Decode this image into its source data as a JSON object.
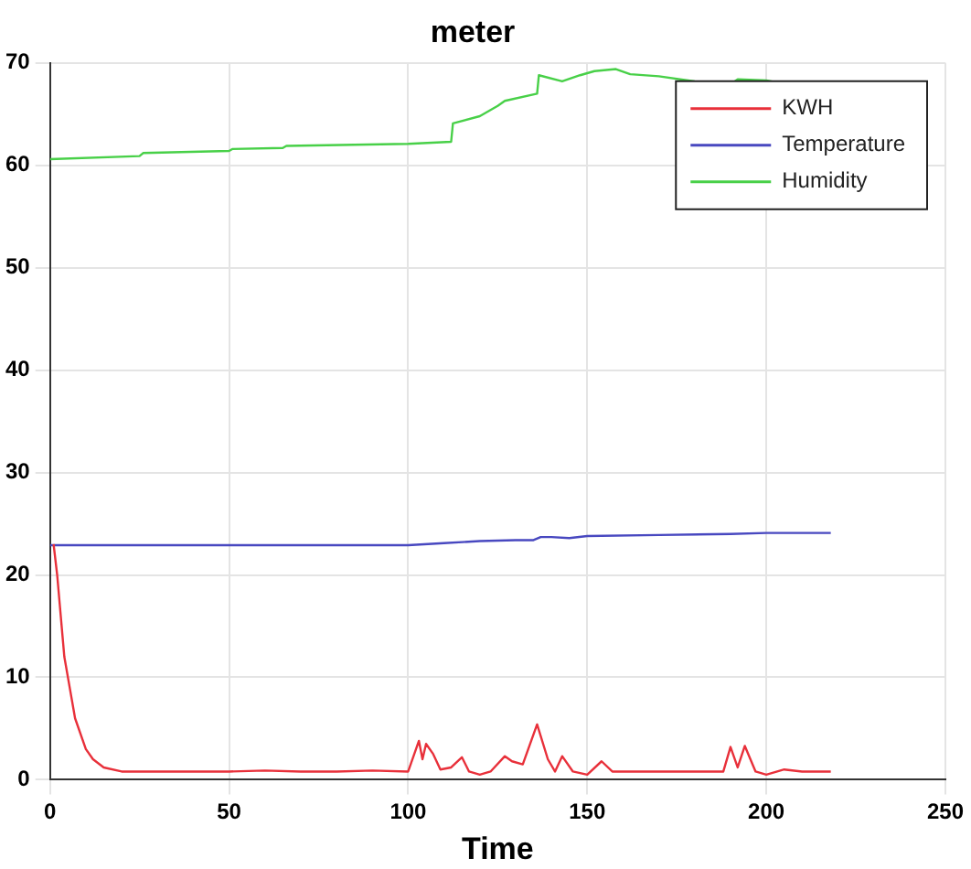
{
  "chart_data": {
    "type": "line",
    "title": "meter",
    "xlabel": "Time",
    "xlim": [
      0,
      250
    ],
    "xticks": [
      0,
      50,
      100,
      150,
      200,
      250
    ],
    "ylim": [
      0,
      70
    ],
    "yticks": [
      0,
      10,
      20,
      30,
      40,
      50,
      60,
      70
    ],
    "grid": true,
    "legend": "top right",
    "marker": "none",
    "line_style": "solid",
    "series": [
      {
        "name": "KWH",
        "color": "#e8303a",
        "x": [
          1,
          2,
          4,
          7,
          10,
          12,
          15,
          20,
          30,
          40,
          50,
          60,
          70,
          80,
          90,
          100,
          103,
          104,
          105,
          107,
          109,
          112,
          115,
          117,
          120,
          123,
          127,
          129,
          132,
          136,
          139,
          141,
          143,
          146,
          150,
          154,
          157,
          170,
          188,
          190,
          192,
          194,
          197,
          200,
          205,
          210,
          218
        ],
        "values": [
          23,
          20,
          12,
          6,
          3,
          2,
          1.2,
          0.8,
          0.8,
          0.8,
          0.8,
          0.9,
          0.8,
          0.8,
          0.9,
          0.8,
          3.8,
          2,
          3.5,
          2.5,
          1,
          1.2,
          2.2,
          0.8,
          0.5,
          0.8,
          2.3,
          1.8,
          1.5,
          5.4,
          2,
          0.8,
          2.3,
          0.8,
          0.5,
          1.8,
          0.8,
          0.8,
          0.8,
          3.2,
          1.2,
          3.3,
          0.8,
          0.5,
          1,
          0.8,
          0.8
        ]
      },
      {
        "name": "Temperature",
        "color": "#4848c0",
        "x": [
          0,
          25,
          50,
          75,
          100,
          110,
          120,
          130,
          135,
          137,
          140,
          145,
          150,
          170,
          190,
          200,
          218
        ],
        "values": [
          22.9,
          22.9,
          22.9,
          22.9,
          22.9,
          23.1,
          23.3,
          23.4,
          23.4,
          23.7,
          23.7,
          23.6,
          23.8,
          23.9,
          24,
          24.1,
          24.1
        ]
      },
      {
        "name": "Humidity",
        "color": "#48d048",
        "x": [
          0,
          25,
          26,
          50,
          51,
          65,
          66,
          100,
          112,
          112.5,
          120,
          125,
          127,
          136,
          136.5,
          143,
          148,
          152,
          158,
          162,
          170,
          180,
          190,
          192,
          200,
          203
        ],
        "values": [
          60.6,
          60.9,
          61.2,
          61.4,
          61.6,
          61.7,
          61.9,
          62.1,
          62.3,
          64.1,
          64.8,
          65.8,
          66.3,
          67,
          68.8,
          68.2,
          68.8,
          69.2,
          69.4,
          68.9,
          68.7,
          68.2,
          67.9,
          68.4,
          68.3,
          68.1
        ]
      }
    ]
  }
}
